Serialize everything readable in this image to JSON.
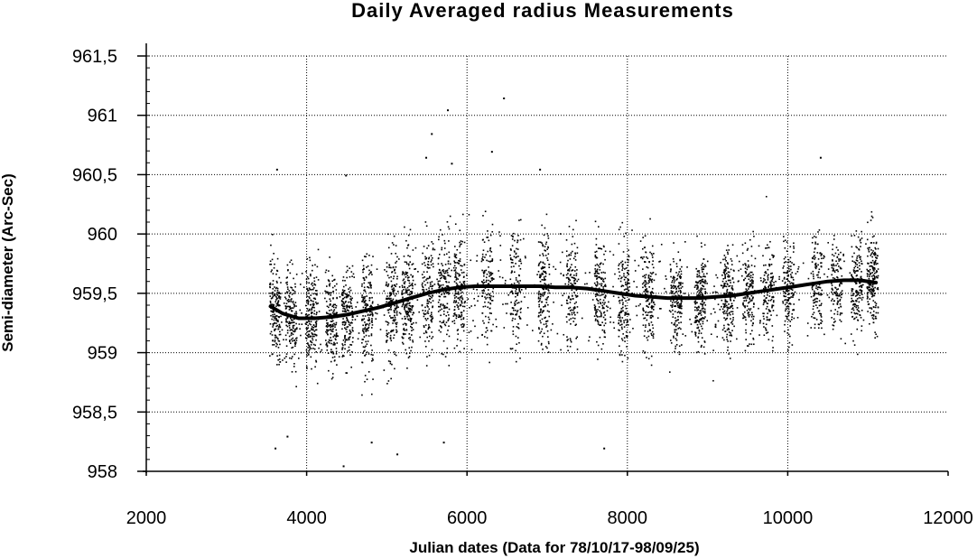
{
  "chart_data": {
    "type": "scatter",
    "title": "Daily   Averaged   radius   Measurements",
    "xlabel": "Julian dates (Data for 78/10/17-98/09/25)",
    "ylabel": "Semi-diameter (Arc-Sec)",
    "xlim": [
      2000,
      12000
    ],
    "ylim": [
      958,
      961.6
    ],
    "x_ticks": [
      2000,
      4000,
      6000,
      8000,
      10000,
      12000
    ],
    "x_tick_labels": [
      "2000",
      "4000",
      "6000",
      "8000",
      "10000",
      "12000"
    ],
    "y_ticks": [
      958,
      958.5,
      959,
      959.5,
      960,
      960.5,
      961,
      961.5
    ],
    "y_tick_labels": [
      "958",
      "958,5",
      "959",
      "959,5",
      "960",
      "960,5",
      "961",
      "961,5"
    ],
    "grid": true,
    "legend": "none",
    "point_color": "#000000",
    "series": [
      {
        "kind": "scatter",
        "x_range": [
          3550,
          11100
        ],
        "observing_seasons": [
          3600,
          3800,
          4050,
          4300,
          4500,
          4750,
          5050,
          5250,
          5500,
          5700,
          5900,
          6250,
          6600,
          6950,
          7300,
          7650,
          7950,
          8250,
          8600,
          8900,
          9250,
          9500,
          9750,
          10000,
          10350,
          10600,
          10850,
          11050
        ],
        "outliers": [
          {
            "x": 3620,
            "y": 960.55
          },
          {
            "x": 3600,
            "y": 958.2
          },
          {
            "x": 4480,
            "y": 960.5
          },
          {
            "x": 4450,
            "y": 958.05
          },
          {
            "x": 5120,
            "y": 958.15
          },
          {
            "x": 5480,
            "y": 960.65
          },
          {
            "x": 5550,
            "y": 960.85
          },
          {
            "x": 5750,
            "y": 961.05
          },
          {
            "x": 5700,
            "y": 958.25
          },
          {
            "x": 6450,
            "y": 961.15
          },
          {
            "x": 6300,
            "y": 960.7
          },
          {
            "x": 6900,
            "y": 960.55
          },
          {
            "x": 7700,
            "y": 958.2
          },
          {
            "x": 10400,
            "y": 960.65
          },
          {
            "x": 3750,
            "y": 958.3
          },
          {
            "x": 4800,
            "y": 958.25
          },
          {
            "x": 5800,
            "y": 960.6
          }
        ]
      },
      {
        "kind": "line",
        "x": [
          3550,
          3700,
          3900,
          4100,
          4300,
          4500,
          4700,
          4900,
          5100,
          5300,
          5500,
          5700,
          5900,
          6100,
          6300,
          6500,
          6700,
          6900,
          7100,
          7300,
          7500,
          7700,
          7900,
          8100,
          8300,
          8500,
          8700,
          8900,
          9100,
          9300,
          9500,
          9700,
          9900,
          10100,
          10300,
          10500,
          10700,
          10900,
          11100
        ],
        "y": [
          959.39,
          959.33,
          959.29,
          959.29,
          959.3,
          959.32,
          959.35,
          959.38,
          959.42,
          959.46,
          959.5,
          959.53,
          959.55,
          959.56,
          959.56,
          959.56,
          959.56,
          959.56,
          959.55,
          959.55,
          959.54,
          959.52,
          959.5,
          959.48,
          959.47,
          959.46,
          959.46,
          959.46,
          959.47,
          959.48,
          959.5,
          959.52,
          959.54,
          959.56,
          959.58,
          959.6,
          959.61,
          959.61,
          959.59
        ]
      }
    ]
  }
}
